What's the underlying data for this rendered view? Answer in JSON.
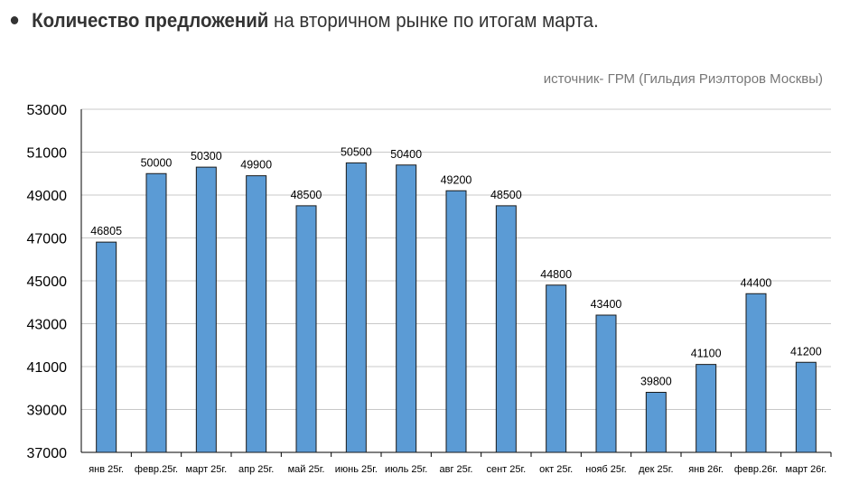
{
  "header": {
    "bold": "Количество предложений",
    "rest": " на вторичном рынке по итогам марта."
  },
  "source": "источник- ГРМ (Гильдия Риэлторов Москвы)",
  "chart_data": {
    "type": "bar",
    "categories": [
      "янв 25г.",
      "февр.25г.",
      "март 25г.",
      "апр 25г.",
      "май 25г.",
      "июнь 25г.",
      "июль 25г.",
      "авг 25г.",
      "сент 25г.",
      "окт 25г.",
      "нояб 25г.",
      "дек 25г.",
      "янв 26г.",
      "февр.26г.",
      "март 26г."
    ],
    "values": [
      46805,
      50000,
      50300,
      49900,
      48500,
      50500,
      50400,
      49200,
      48500,
      44800,
      43400,
      39800,
      41100,
      44400,
      41200
    ],
    "ylim": [
      37000,
      53000
    ],
    "yticks": [
      37000,
      39000,
      41000,
      43000,
      45000,
      47000,
      49000,
      51000,
      53000
    ],
    "grid": true,
    "bar_color": "#5b9bd5",
    "title": "",
    "xlabel": "",
    "ylabel": ""
  }
}
